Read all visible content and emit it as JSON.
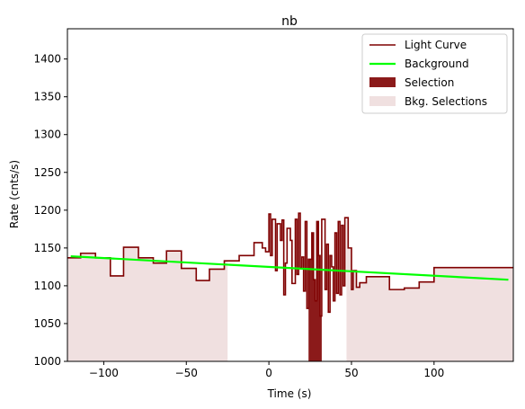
{
  "chart_data": {
    "type": "line",
    "title": "nb",
    "xlabel": "Time (s)",
    "ylabel": "Rate (cnts/s)",
    "xlim": [
      -122,
      148
    ],
    "ylim": [
      1000,
      1440
    ],
    "xticks": [
      -100,
      -50,
      0,
      50,
      100
    ],
    "yticks": [
      1000,
      1050,
      1100,
      1150,
      1200,
      1250,
      1300,
      1350,
      1400
    ],
    "grid": false,
    "legend_position": "top-right",
    "legend": [
      "Light Curve",
      "Background",
      "Selection",
      "Bkg. Selections"
    ],
    "colors": {
      "light_curve": "#7f0000",
      "background": "#00ff00",
      "selection": "#8b1a1a",
      "bkg_selection": "#f0e0e0"
    },
    "series": [
      {
        "name": "Light Curve",
        "style": "step",
        "x": [
          -122,
          -114,
          -105,
          -96,
          -88,
          -79,
          -70,
          -62,
          -53,
          -44,
          -36,
          -27,
          -18,
          -9,
          -4,
          -2,
          0,
          1,
          2,
          4,
          5,
          7,
          8,
          9,
          10,
          11,
          13,
          14,
          16,
          17,
          18,
          19,
          20,
          21,
          22,
          23,
          24,
          26,
          27,
          28,
          29,
          30,
          31,
          32,
          34,
          35,
          36,
          37,
          38,
          39,
          40,
          41,
          42,
          43,
          44,
          45,
          46,
          48,
          50,
          51,
          53,
          55,
          57,
          59,
          64,
          73,
          82,
          91,
          100,
          109,
          118,
          127,
          136,
          145,
          148
        ],
        "y": [
          1137,
          1143,
          1137,
          1113,
          1151,
          1137,
          1130,
          1146,
          1123,
          1107,
          1122,
          1133,
          1140,
          1157,
          1150,
          1145,
          1195,
          1140,
          1188,
          1120,
          1182,
          1160,
          1187,
          1088,
          1130,
          1176,
          1160,
          1103,
          1188,
          1115,
          1196,
          1124,
          1138,
          1093,
          1185,
          1070,
          1135,
          1170,
          1108,
          1080,
          1185,
          1140,
          1060,
          1188,
          1095,
          1155,
          1065,
          1140,
          1125,
          1080,
          1170,
          1090,
          1185,
          1088,
          1180,
          1100,
          1190,
          1150,
          1095,
          1120,
          1098,
          1104,
          1104,
          1112,
          1112,
          1095,
          1097,
          1105,
          1124,
          1124,
          1124,
          1124,
          1124,
          1124,
          1124
        ]
      },
      {
        "name": "Background",
        "style": "line",
        "x": [
          -120,
          145
        ],
        "y": [
          1139,
          1108
        ]
      }
    ],
    "selection": {
      "x_start": 24,
      "x_end": 32
    },
    "bkg_selections": [
      {
        "x_start": -122,
        "x_end": -25
      },
      {
        "x_start": 47,
        "x_end": 148
      }
    ]
  }
}
